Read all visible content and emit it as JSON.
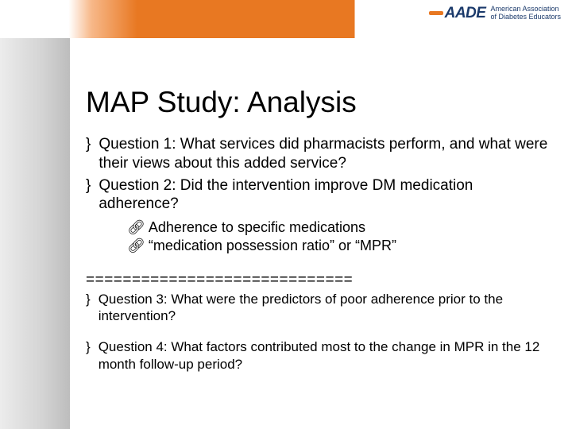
{
  "brand": {
    "mark": "AADE",
    "line1": "American Association",
    "line2": "of Diabetes Educators"
  },
  "title": "MAP Study: Analysis",
  "q1": "Question 1: What services did pharmacists perform, and what were their views about this added service?",
  "q2": "Question 2: Did the intervention improve DM medication adherence?",
  "sub1": "Adherence to specific medications",
  "sub2": "“medication possession ratio” or “MPR”",
  "divider": "=============================",
  "q3": "Question 3: What were the predictors of poor adherence prior to the intervention?",
  "q4": "Question 4:  What factors contributed most to the change in MPR in the 12 month follow-up period?",
  "colors": {
    "accent": "#e87822",
    "brand_text": "#1b3a6b",
    "sidebar_grad_start": "#ececec",
    "sidebar_grad_end": "#bdbdbd",
    "bg": "#ffffff"
  }
}
